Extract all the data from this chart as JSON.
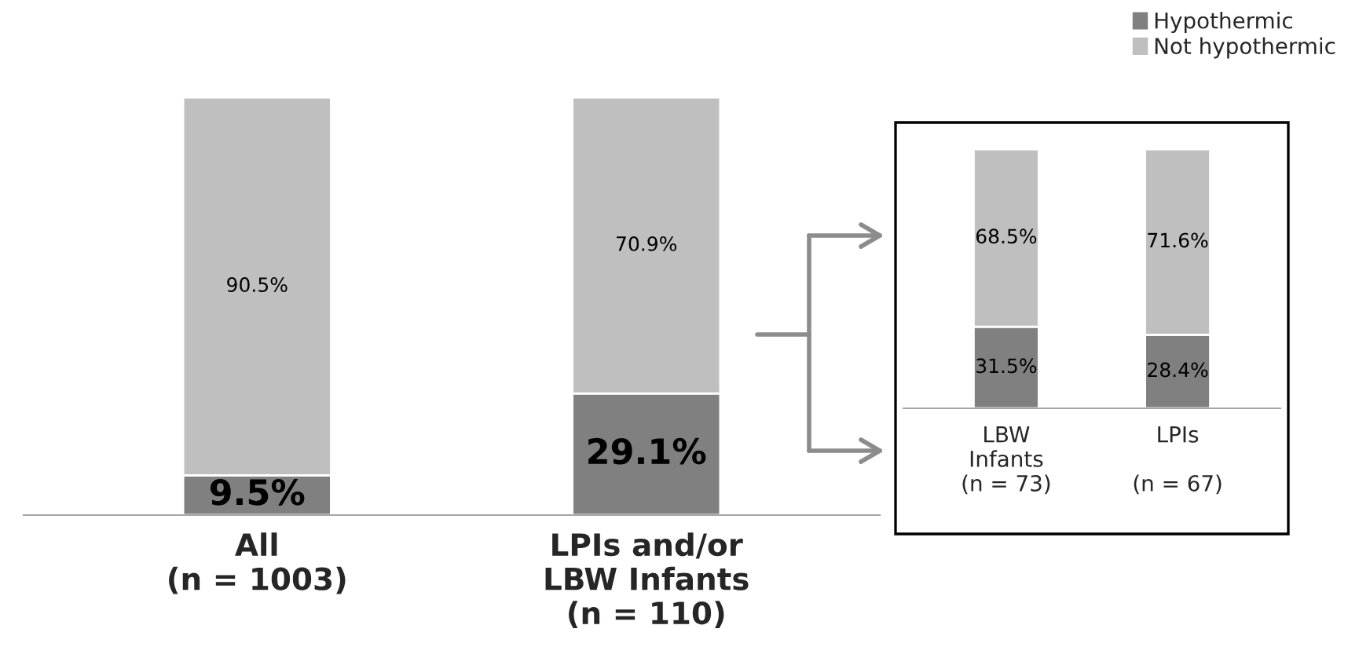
{
  "chart_data": [
    {
      "type": "bar",
      "stacked": true,
      "categories": [
        "All\n(n = 1003)",
        "LPIs and/or\nLBW Infants\n(n = 110)"
      ],
      "ylim": [
        0,
        100
      ],
      "tick_labels": "x",
      "data_labels": true,
      "legend": false,
      "series": [
        {
          "color": "#808080",
          "values": [
            9.5,
            29.1
          ],
          "value_labels": [
            "9.5%",
            "29.1%"
          ]
        },
        {
          "color": "#bfbfbf",
          "values": [
            90.5,
            70.9
          ],
          "value_labels": [
            "90.5%",
            "70.9%"
          ]
        }
      ]
    },
    {
      "type": "bar",
      "stacked": true,
      "categories": [
        "LBW\nInfants\n(n = 73)",
        "LPIs\n\n(n = 67)"
      ],
      "ylim": [
        0,
        100
      ],
      "tick_labels": "x",
      "data_labels": true,
      "legend": "top right",
      "series": [
        {
          "name": "Hypothermic",
          "color": "#808080",
          "values": [
            31.5,
            28.4
          ],
          "value_labels": [
            "31.5%",
            "28.4%"
          ]
        },
        {
          "name": "Not hypothermic",
          "color": "#bfbfbf",
          "values": [
            68.5,
            71.6
          ],
          "value_labels": [
            "68.5%",
            "71.6%"
          ]
        }
      ]
    }
  ]
}
